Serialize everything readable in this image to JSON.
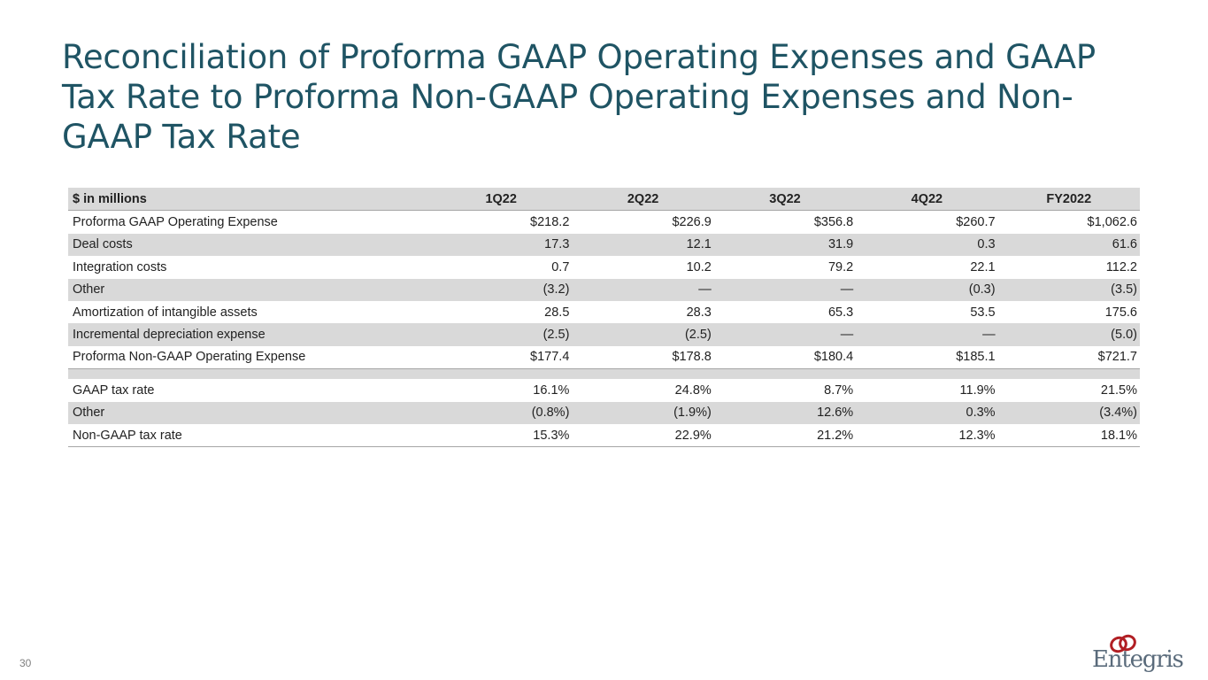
{
  "slide": {
    "title": "Reconciliation of Proforma GAAP Operating Expenses and GAAP Tax Rate to Proforma Non-GAAP Operating Expenses and Non-GAAP Tax Rate",
    "page_number": "30",
    "logo_text": "Entegris",
    "colors": {
      "title": "#1f5464",
      "row_shade": "#d9d9d9",
      "logo_mark": "#b11f24",
      "logo_text": "#5a6b7b"
    }
  },
  "table": {
    "headers": [
      "$ in millions",
      "1Q22",
      "2Q22",
      "3Q22",
      "4Q22",
      "FY2022"
    ],
    "rows": [
      {
        "label": "Proforma GAAP Operating Expense",
        "values": [
          "$218.2",
          "$226.9",
          "$356.8",
          "$260.7",
          "$1,062.6"
        ]
      },
      {
        "label": "Deal costs",
        "values": [
          "17.3",
          "12.1",
          "31.9",
          "0.3",
          "61.6"
        ]
      },
      {
        "label": "Integration costs",
        "values": [
          "0.7",
          "10.2",
          "79.2",
          "22.1",
          "112.2"
        ]
      },
      {
        "label": "Other",
        "values": [
          "(3.2)",
          "—",
          "—",
          "(0.3)",
          "(3.5)"
        ]
      },
      {
        "label": "Amortization of intangible assets",
        "values": [
          "28.5",
          "28.3",
          "65.3",
          "53.5",
          "175.6"
        ]
      },
      {
        "label": "Incremental depreciation expense",
        "values": [
          "(2.5)",
          "(2.5)",
          "—",
          "—",
          "(5.0)"
        ]
      },
      {
        "label": "Proforma Non-GAAP Operating Expense",
        "values": [
          "$177.4",
          "$178.8",
          "$180.4",
          "$185.1",
          "$721.7"
        ]
      },
      {
        "label": "GAAP tax rate",
        "values": [
          "16.1%",
          "24.8%",
          "8.7%",
          "11.9%",
          "21.5%"
        ]
      },
      {
        "label": "Other",
        "values": [
          "(0.8%)",
          "(1.9%)",
          "12.6%",
          "0.3%",
          "(3.4%)"
        ]
      },
      {
        "label": "Non-GAAP tax rate",
        "values": [
          "15.3%",
          "22.9%",
          "21.2%",
          "12.3%",
          "18.1%"
        ]
      }
    ]
  }
}
